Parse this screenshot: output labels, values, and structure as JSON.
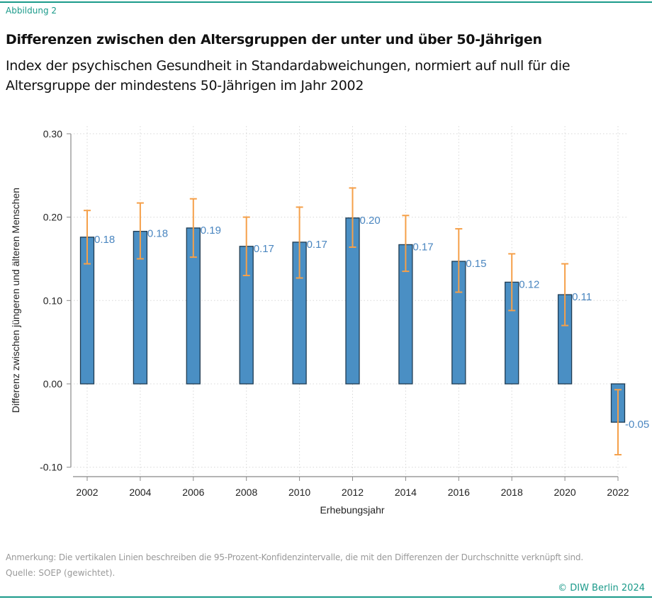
{
  "figure_label": "Abbildung 2",
  "title": "Differenzen zwischen den Altersgruppen der unter und über 50-Jährigen",
  "subtitle": "Index der psychischen Gesundheit in Standardabweichungen, normiert auf null für die Altersgruppe der mindestens 50-Jährigen im Jahr 2002",
  "note": "Anmerkung: Die vertikalen Linien beschreiben die 95-Prozent-Konfidenzintervalle, die mit den Differenzen der Durchschnitte verknüpft sind.",
  "source": "Quelle: SOEP (gewichtet).",
  "copyright": "© DIW Berlin 2024",
  "colors": {
    "bar": "#4a8fc4",
    "bar_border": "#1f3b52",
    "error_bar": "#f5a04a",
    "data_label": "#4a86c0",
    "accent": "#1a9a8a"
  },
  "chart_data": {
    "type": "bar",
    "xlabel": "Erhebungsjahr",
    "ylabel": "Differenz zwischen jüngeren und älteren Menschen",
    "ylim": [
      -0.1,
      0.3
    ],
    "yticks": [
      "0.30",
      "0.20",
      "0.10",
      "0.00",
      "-0.10"
    ],
    "ytick_values": [
      0.3,
      0.2,
      0.1,
      0.0,
      -0.1
    ],
    "grid": true,
    "categories": [
      "2002",
      "2004",
      "2006",
      "2008",
      "2010",
      "2012",
      "2014",
      "2016",
      "2018",
      "2020",
      "2022"
    ],
    "values": [
      0.176,
      0.183,
      0.187,
      0.165,
      0.17,
      0.199,
      0.167,
      0.147,
      0.122,
      0.107,
      -0.046
    ],
    "data_labels": [
      "0.18",
      "0.18",
      "0.19",
      "0.17",
      "0.17",
      "0.20",
      "0.17",
      "0.15",
      "0.12",
      "0.11",
      "-0.05"
    ],
    "ci_upper": [
      0.208,
      0.217,
      0.222,
      0.2,
      0.212,
      0.235,
      0.202,
      0.186,
      0.156,
      0.144,
      -0.007
    ],
    "ci_lower": [
      0.144,
      0.15,
      0.152,
      0.13,
      0.127,
      0.164,
      0.135,
      0.11,
      0.088,
      0.07,
      -0.085
    ]
  }
}
